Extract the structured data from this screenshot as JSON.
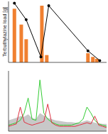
{
  "chart_data": [
    {
      "type": "bar",
      "y_label": "Terbuthylazine load [g]",
      "xlim": [
        0,
        100
      ],
      "ylim": [
        0,
        100
      ],
      "tick_labels": false,
      "series": [
        {
          "type": "bar",
          "color": "#f08030",
          "x": [
            6,
            13,
            18,
            34,
            39,
            81,
            86,
            90
          ],
          "values": [
            88,
            62,
            38,
            93,
            12,
            15,
            9,
            6
          ]
        },
        {
          "type": "line",
          "color": "#000000",
          "marker": "circle",
          "x": [
            6,
            18,
            33,
            41,
            81,
            93
          ],
          "values": [
            97,
            70,
            9,
            93,
            19,
            3
          ]
        }
      ]
    },
    {
      "type": "line",
      "xlim": [
        0,
        100
      ],
      "ylim": [
        0,
        100
      ],
      "tick_labels": false,
      "x": [
        0,
        4,
        8,
        12,
        16,
        20,
        24,
        28,
        32,
        36,
        40,
        44,
        48,
        52,
        56,
        60,
        64,
        68,
        72,
        76,
        80,
        84,
        88,
        92,
        96,
        100
      ],
      "series": [
        {
          "type": "area",
          "color": "#c8c8c8",
          "values": [
            18,
            20,
            22,
            25,
            24,
            28,
            22,
            20,
            30,
            26,
            22,
            20,
            18,
            17,
            16,
            15,
            15,
            14,
            14,
            16,
            18,
            16,
            14,
            13,
            12,
            12
          ]
        },
        {
          "type": "line",
          "color": "#33cc33",
          "values": [
            10,
            12,
            14,
            18,
            30,
            55,
            20,
            18,
            85,
            30,
            20,
            15,
            12,
            10,
            10,
            10,
            10,
            12,
            14,
            20,
            40,
            30,
            18,
            12,
            10,
            8
          ]
        },
        {
          "type": "line",
          "color": "#e03040",
          "values": [
            8,
            10,
            12,
            40,
            15,
            12,
            10,
            12,
            14,
            16,
            45,
            14,
            10,
            8,
            8,
            8,
            8,
            8,
            10,
            12,
            14,
            12,
            25,
            10,
            8,
            6
          ]
        }
      ]
    }
  ]
}
